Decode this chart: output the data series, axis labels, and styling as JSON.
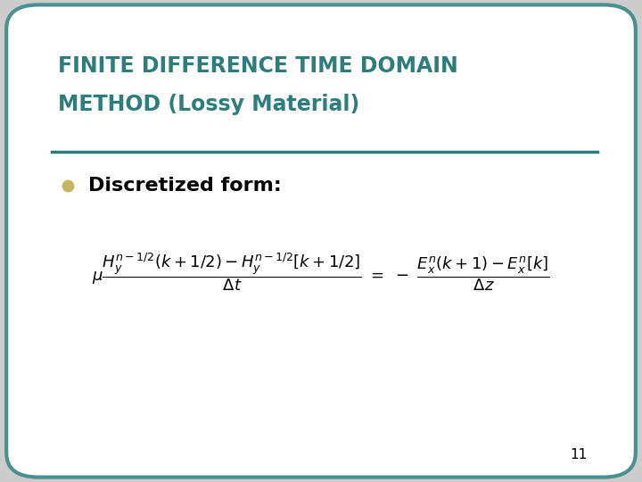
{
  "title_line1": "FINITE DIFFERENCE TIME DOMAIN",
  "title_line2": "METHOD (Lossy Material)",
  "title_color": "#2E7D7D",
  "bullet_text": "Discretized form:",
  "bullet_color": "#C8B560",
  "background_color": "#FFFFFF",
  "border_color": "#4A9090",
  "slide_bg": "#CCCCCC",
  "page_number": "11",
  "line_color": "#2E7D7D",
  "text_color": "#000000"
}
